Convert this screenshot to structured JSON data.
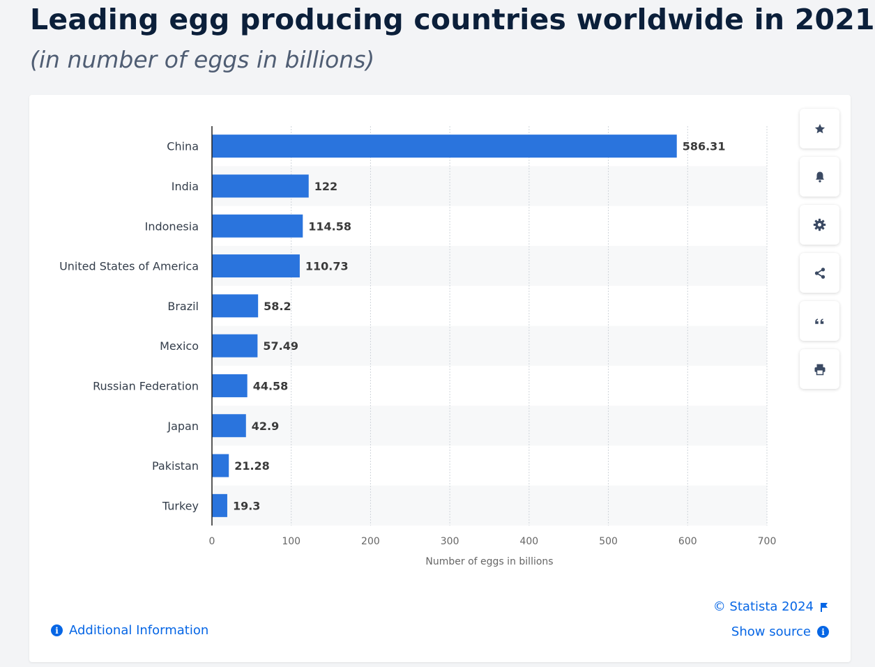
{
  "title": "Leading egg producing countries worldwide in 2021",
  "subtitle": "(in number of eggs in billions)",
  "chart_data": {
    "type": "bar",
    "orientation": "horizontal",
    "title": "Leading egg producing countries worldwide in 2021",
    "subtitle": "(in number of eggs in billions)",
    "categories": [
      "China",
      "India",
      "Indonesia",
      "United States of America",
      "Brazil",
      "Mexico",
      "Russian Federation",
      "Japan",
      "Pakistan",
      "Turkey"
    ],
    "values": [
      586.31,
      122,
      114.58,
      110.73,
      58.2,
      57.49,
      44.58,
      42.9,
      21.28,
      19.3
    ],
    "value_labels": [
      "586.31",
      "122",
      "114.58",
      "110.73",
      "58.2",
      "57.49",
      "44.58",
      "42.9",
      "21.28",
      "19.3"
    ],
    "xlabel": "Number of eggs in billions",
    "ylabel": "",
    "xlim": [
      0,
      700
    ],
    "xticks": [
      0,
      100,
      200,
      300,
      400,
      500,
      600,
      700
    ],
    "xtick_labels": [
      "0",
      "100",
      "200",
      "300",
      "400",
      "500",
      "600",
      "700"
    ],
    "grid": true,
    "alternating_row_shading": true,
    "bar_color": "#2a74dd"
  },
  "colors": {
    "accent": "#0666e5",
    "title": "#0b1f3a",
    "subtitle": "#4f5d73",
    "bar": "#2a74dd",
    "icon": "#3b4a63"
  },
  "sidebar_icons": [
    "star-icon",
    "bell-icon",
    "gear-icon",
    "share-icon",
    "quote-icon",
    "print-icon"
  ],
  "footer": {
    "additional_info": "Additional Information",
    "copyright": "© Statista 2024",
    "show_source": "Show source"
  }
}
